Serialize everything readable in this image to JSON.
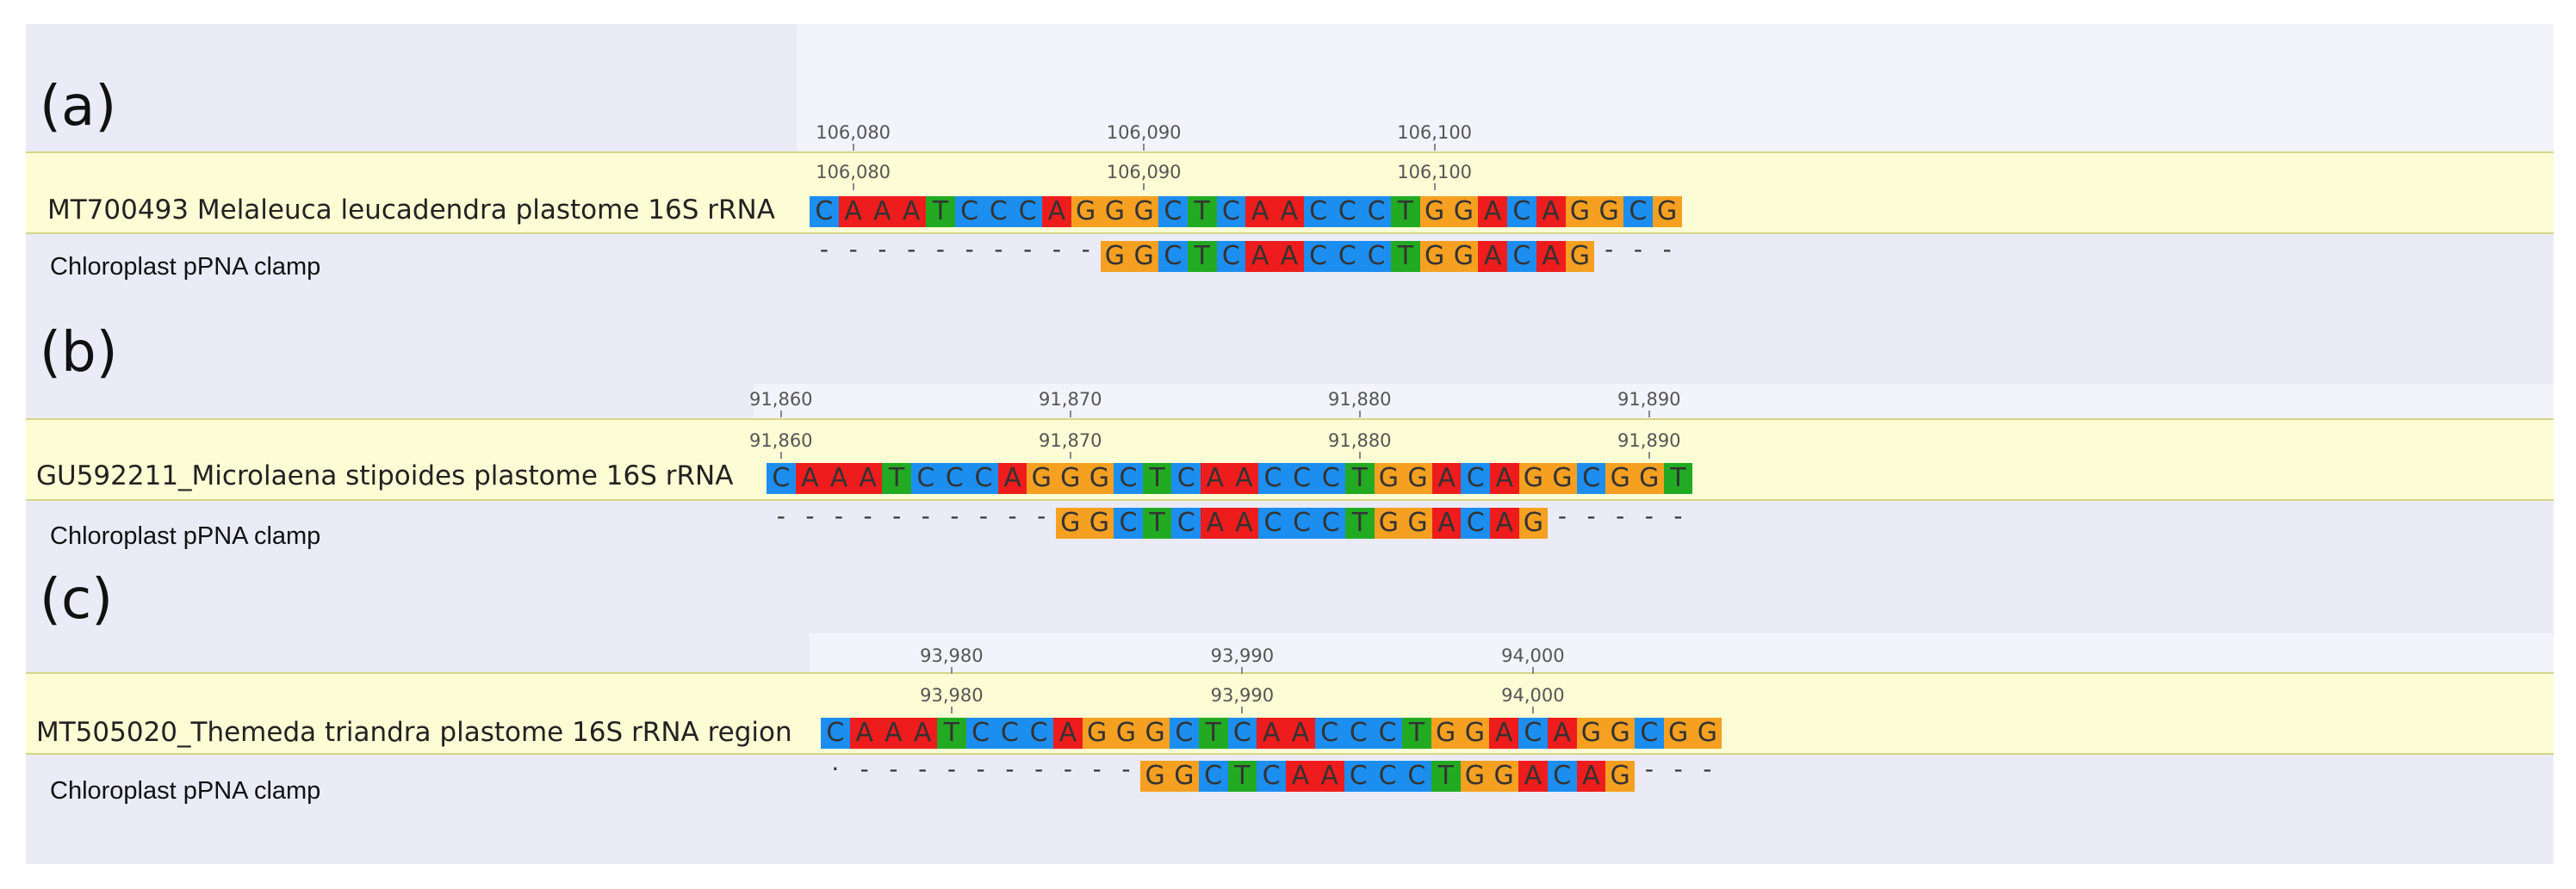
{
  "colors": {
    "A": "#ee1c1c",
    "C": "#1c8ef0",
    "G": "#f5a021",
    "T": "#22aa22"
  },
  "panels": [
    {
      "label": "(a)",
      "name": "MT700493 Melaleuca leucadendra plastome 16S rRNA",
      "clamp_name": "Chloroplast pPNA clamp",
      "ticks": [
        "106,080",
        "106,090",
        "106,100"
      ],
      "sequence": [
        "C",
        "A",
        "A",
        "A",
        "T",
        "C",
        "C",
        "C",
        "A",
        "G",
        "G",
        "G",
        "C",
        "T",
        "C",
        "A",
        "A",
        "C",
        "C",
        "C",
        "T",
        "G",
        "G",
        "A",
        "C",
        "A",
        "G",
        "G",
        "C",
        "G"
      ],
      "clamp": [
        "-",
        "-",
        "-",
        "-",
        "-",
        "-",
        "-",
        "-",
        "-",
        "-",
        "G",
        "G",
        "C",
        "T",
        "C",
        "A",
        "A",
        "C",
        "C",
        "C",
        "T",
        "G",
        "G",
        "A",
        "C",
        "A",
        "G",
        "-",
        "-",
        "-"
      ]
    },
    {
      "label": "(b)",
      "name": "GU592211_Microlaena stipoides plastome 16S rRNA",
      "clamp_name": "Chloroplast pPNA clamp",
      "ticks": [
        "91,860",
        "91,870",
        "91,880",
        "91,890"
      ],
      "sequence": [
        "C",
        "A",
        "A",
        "A",
        "T",
        "C",
        "C",
        "C",
        "A",
        "G",
        "G",
        "G",
        "C",
        "T",
        "C",
        "A",
        "A",
        "C",
        "C",
        "C",
        "T",
        "G",
        "G",
        "A",
        "C",
        "A",
        "G",
        "G",
        "C",
        "G",
        "G",
        "T"
      ],
      "clamp": [
        "-",
        "-",
        "-",
        "-",
        "-",
        "-",
        "-",
        "-",
        "-",
        "-",
        "G",
        "G",
        "C",
        "T",
        "C",
        "A",
        "A",
        "C",
        "C",
        "C",
        "T",
        "G",
        "G",
        "A",
        "C",
        "A",
        "G",
        "-",
        "-",
        "-",
        "-",
        "-"
      ]
    },
    {
      "label": "(c)",
      "name": "MT505020_Themeda triandra plastome 16S rRNA region",
      "clamp_name": "Chloroplast pPNA clamp",
      "ticks": [
        "93,980",
        "93,990",
        "94,000"
      ],
      "sequence": [
        "C",
        "A",
        "A",
        "A",
        "T",
        "C",
        "C",
        "C",
        "A",
        "G",
        "G",
        "G",
        "C",
        "T",
        "C",
        "A",
        "A",
        "C",
        "C",
        "C",
        "T",
        "G",
        "G",
        "A",
        "C",
        "A",
        "G",
        "G",
        "C",
        "G",
        "G"
      ],
      "clamp": [
        "·",
        "-",
        "-",
        "-",
        "-",
        "-",
        "-",
        "-",
        "-",
        "-",
        "-",
        "G",
        "G",
        "C",
        "T",
        "C",
        "A",
        "A",
        "C",
        "C",
        "C",
        "T",
        "G",
        "G",
        "A",
        "C",
        "A",
        "G",
        "-",
        "-",
        "-"
      ]
    }
  ]
}
